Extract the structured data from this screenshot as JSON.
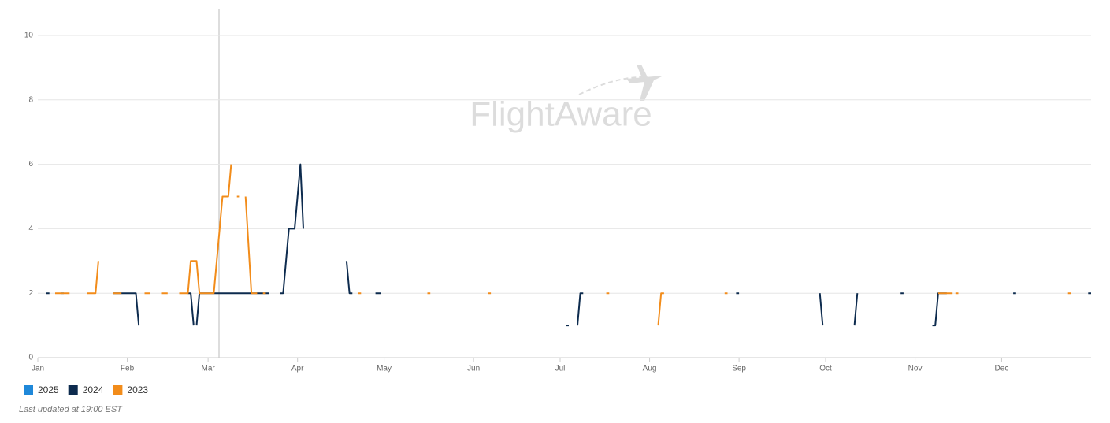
{
  "chart_data": {
    "type": "line",
    "watermark": "FlightAware",
    "footnote": "Last updated at 19:00 EST",
    "xlim": [
      1,
      366
    ],
    "xticks": [
      {
        "value": 1,
        "label": "Jan"
      },
      {
        "value": 32,
        "label": "Feb"
      },
      {
        "value": 60,
        "label": "Mar"
      },
      {
        "value": 91,
        "label": "Apr"
      },
      {
        "value": 121,
        "label": "May"
      },
      {
        "value": 152,
        "label": "Jun"
      },
      {
        "value": 182,
        "label": "Jul"
      },
      {
        "value": 213,
        "label": "Aug"
      },
      {
        "value": 244,
        "label": "Sep"
      },
      {
        "value": 274,
        "label": "Oct"
      },
      {
        "value": 305,
        "label": "Nov"
      },
      {
        "value": 335,
        "label": "Dec"
      }
    ],
    "ylim": [
      0,
      10
    ],
    "yticks": [
      0,
      2,
      4,
      6,
      8,
      10
    ],
    "grid": true,
    "legend": "bottom-left",
    "series": [
      {
        "name": "2025",
        "color": "#1f88d9",
        "x": [
          9,
          10
        ],
        "values": [
          2,
          2
        ]
      },
      {
        "name": "2024",
        "color": "#0d2b4e",
        "x": [
          4,
          5,
          null,
          27,
          35,
          36,
          null,
          53,
          54,
          55,
          null,
          56,
          57,
          81,
          null,
          85,
          86,
          88,
          90,
          92,
          93,
          null,
          108,
          109,
          110,
          null,
          118,
          120,
          null,
          184,
          185,
          null,
          188,
          189,
          190,
          null,
          243,
          244,
          null,
          272,
          273,
          null,
          284,
          285,
          null,
          300,
          301,
          null,
          311,
          312,
          313,
          316,
          null,
          339,
          340,
          null,
          365,
          366
        ],
        "values": [
          2,
          2,
          null,
          2,
          2,
          1,
          null,
          2,
          2,
          1,
          null,
          1,
          2,
          2,
          null,
          2,
          2,
          4,
          4,
          6,
          4,
          null,
          3,
          2,
          2,
          null,
          2,
          2,
          null,
          1,
          1,
          null,
          1,
          2,
          2,
          null,
          2,
          2,
          null,
          2,
          1,
          null,
          1,
          2,
          null,
          2,
          2,
          null,
          1,
          1,
          2,
          2,
          null,
          2,
          2,
          null,
          2,
          2
        ]
      },
      {
        "name": "2023",
        "color": "#f28c1a",
        "x": [
          7,
          12,
          null,
          18,
          21,
          22,
          null,
          27,
          30,
          null,
          38,
          40,
          null,
          44,
          46,
          null,
          50,
          53,
          54,
          56,
          57,
          62,
          64,
          65,
          67,
          68,
          null,
          70,
          71,
          null,
          73,
          75,
          77,
          null,
          79,
          80,
          null,
          112,
          113,
          null,
          136,
          137,
          null,
          157,
          158,
          null,
          198,
          199,
          null,
          216,
          217,
          218,
          null,
          239,
          240,
          null,
          313,
          318,
          null,
          319,
          320,
          null,
          358,
          359
        ],
        "values": [
          2,
          2,
          null,
          2,
          2,
          3,
          null,
          2,
          2,
          null,
          2,
          2,
          null,
          2,
          2,
          null,
          2,
          2,
          3,
          3,
          2,
          2,
          4,
          5,
          5,
          6,
          null,
          5,
          5,
          null,
          5,
          2,
          2,
          null,
          2,
          2,
          null,
          2,
          2,
          null,
          2,
          2,
          null,
          2,
          2,
          null,
          2,
          2,
          null,
          1,
          2,
          2,
          null,
          2,
          2,
          null,
          2,
          2,
          null,
          2,
          2,
          null,
          2,
          2
        ]
      }
    ]
  }
}
